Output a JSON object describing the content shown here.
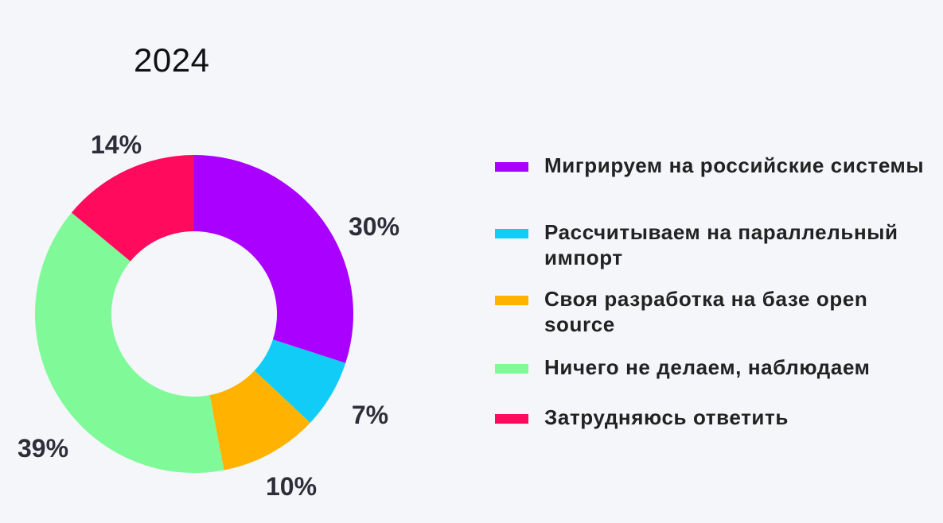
{
  "chart_data": {
    "type": "pie",
    "title": "2024",
    "categories": [
      "Мигрируем на российские системы",
      "Рассчитываем на параллельный импорт",
      "Своя разработка на базе open source",
      "Ничего не делаем, наблюдаем",
      "Затрудняюсь ответить"
    ],
    "values": [
      30,
      7,
      10,
      39,
      14
    ],
    "value_labels": [
      "30%",
      "7%",
      "10%",
      "39%",
      "14%"
    ],
    "colors": [
      "#aa00ff",
      "#11ccf7",
      "#ffb300",
      "#80fa99",
      "#ff0a5c"
    ],
    "donut": true,
    "legend_position": "right"
  },
  "legend": {
    "items": [
      {
        "label": "Мигрируем на российские системы",
        "color": "#aa00ff"
      },
      {
        "label": "Рассчитываем на параллельный импорт",
        "color": "#11ccf7"
      },
      {
        "label": "Своя разработка на базе open source",
        "color": "#ffb300"
      },
      {
        "label": "Ничего не делаем, наблюдаем",
        "color": "#80fa99"
      },
      {
        "label": "Затрудняюсь ответить",
        "color": "#ff0a5c"
      }
    ]
  }
}
